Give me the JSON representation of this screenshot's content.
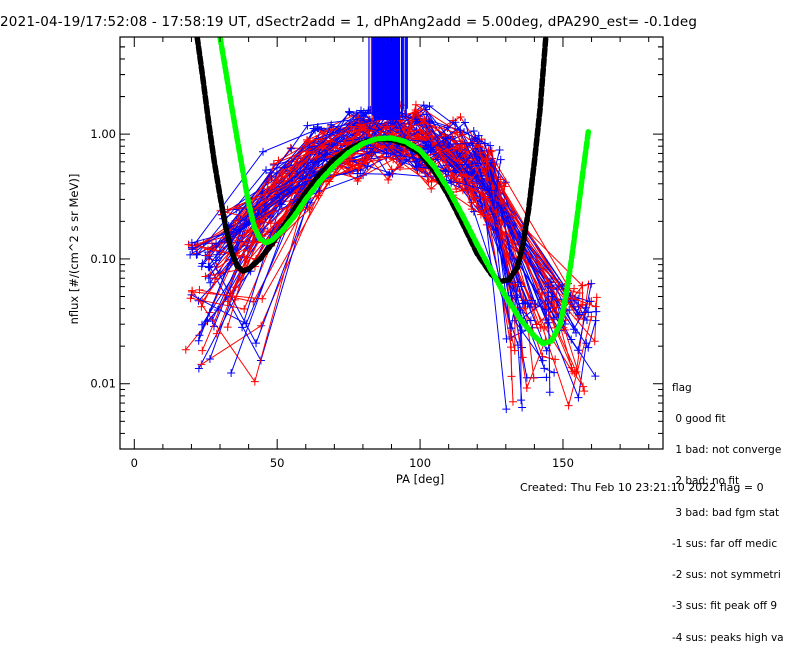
{
  "chart_data": {
    "type": "line",
    "title": "2021-04-19/17:52:08 - 17:58:19 UT, dSectr2add = 1, dPhAng2add = 5.00deg, dPA290_est=  -0.1deg",
    "xlabel": "PA [deg]",
    "ylabel": "nflux [#/(cm^2 s sr MeV)]",
    "xlim": [
      -5,
      185
    ],
    "ylim": [
      0.003,
      6.0
    ],
    "yscale": "log",
    "x_ticks": [
      0,
      50,
      100,
      150
    ],
    "x_tick_labels": [
      "0",
      "50",
      "100",
      "150"
    ],
    "y_ticks": [
      0.01,
      0.1,
      1.0
    ],
    "y_tick_labels": [
      "0.01",
      "0.10",
      "1.00"
    ],
    "colors": {
      "red": "#ff0000",
      "blue": "#0000ff",
      "black": "#000000",
      "green": "#00ff00"
    },
    "series": [
      {
        "name": "fit-black",
        "color": "#000000",
        "style": "dashed-thick",
        "x": [
          22,
          24,
          26,
          28,
          30,
          32,
          34,
          36,
          38,
          40,
          44,
          48,
          52,
          56,
          60,
          65,
          70,
          75,
          80,
          85,
          90,
          95,
          100,
          105,
          110,
          115,
          120,
          125,
          128,
          131,
          134,
          136,
          138,
          140,
          142,
          144
        ],
        "y": [
          6.0,
          2.8,
          1.25,
          0.6,
          0.32,
          0.18,
          0.115,
          0.088,
          0.08,
          0.083,
          0.1,
          0.13,
          0.18,
          0.25,
          0.34,
          0.48,
          0.63,
          0.76,
          0.86,
          0.91,
          0.9,
          0.83,
          0.7,
          0.5,
          0.32,
          0.19,
          0.11,
          0.075,
          0.066,
          0.068,
          0.085,
          0.13,
          0.25,
          0.6,
          1.6,
          6.0
        ]
      },
      {
        "name": "fit-green",
        "color": "#00ff00",
        "style": "dashed-thick",
        "x": [
          30,
          32,
          34,
          36,
          38,
          40,
          42,
          44,
          46,
          48,
          52,
          56,
          60,
          65,
          70,
          75,
          80,
          85,
          90,
          95,
          100,
          105,
          110,
          115,
          120,
          125,
          130,
          135,
          140,
          143,
          146,
          149,
          151,
          153,
          155,
          157,
          159
        ],
        "y": [
          6.0,
          3.2,
          1.7,
          0.92,
          0.5,
          0.28,
          0.18,
          0.145,
          0.135,
          0.14,
          0.17,
          0.22,
          0.3,
          0.42,
          0.56,
          0.71,
          0.84,
          0.92,
          0.93,
          0.87,
          0.74,
          0.55,
          0.36,
          0.22,
          0.13,
          0.08,
          0.05,
          0.033,
          0.024,
          0.021,
          0.022,
          0.03,
          0.05,
          0.1,
          0.22,
          0.5,
          1.1
        ]
      }
    ],
    "measured_series_note": "many red (+) and blue (+) measurement curves peaking near PA 90 deg"
  },
  "legend": {
    "title": "flag",
    "items": [
      " 0 good fit",
      " 1 bad: not converge",
      " 2 bad: no fit",
      " 3 bad: bad fgm stat",
      "-1 sus: far off medic",
      "-2 sus: not symmetri",
      "-3 sus: fit peak off 9",
      "-4 sus: peaks high va"
    ]
  },
  "footer": {
    "created": "Created: Thu Feb 10 23:21:10 2022    flag = 0"
  }
}
